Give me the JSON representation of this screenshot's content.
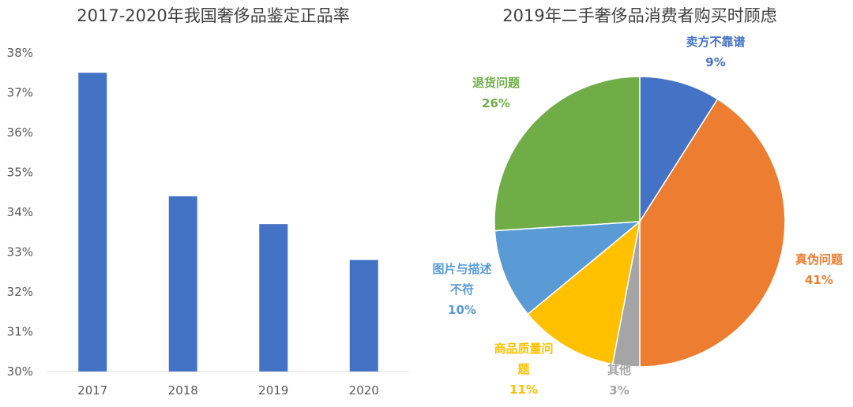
{
  "chart_data": [
    {
      "type": "bar",
      "title": "2017-2020年我国奢侈品鉴定正品率",
      "categories": [
        "2017",
        "2018",
        "2019",
        "2020"
      ],
      "values": [
        37.5,
        34.4,
        33.7,
        32.8
      ],
      "ylim": [
        30,
        38
      ],
      "yticks": [
        "30%",
        "31%",
        "32%",
        "33%",
        "34%",
        "35%",
        "36%",
        "37%",
        "38%"
      ],
      "xlabel": "",
      "ylabel": "",
      "color": "#4472C4"
    },
    {
      "type": "pie",
      "title": "2019年二手奢侈品消费者购买时顾虑",
      "slices": [
        {
          "label": "卖方不靠谱",
          "value": 9,
          "pct": "9%",
          "color": "#4472C4"
        },
        {
          "label": "真伪问题",
          "value": 41,
          "pct": "41%",
          "color": "#ED7D31"
        },
        {
          "label": "其他",
          "value": 3,
          "pct": "3%",
          "color": "#A5A5A5"
        },
        {
          "label": "商品质量问题",
          "value": 11,
          "pct": "11%",
          "color": "#FFC000"
        },
        {
          "label": "图片与描述不符",
          "value": 10,
          "pct": "10%",
          "color": "#5B9BD5"
        },
        {
          "label": "退货问题",
          "value": 26,
          "pct": "26%",
          "color": "#70AD47"
        }
      ]
    }
  ]
}
